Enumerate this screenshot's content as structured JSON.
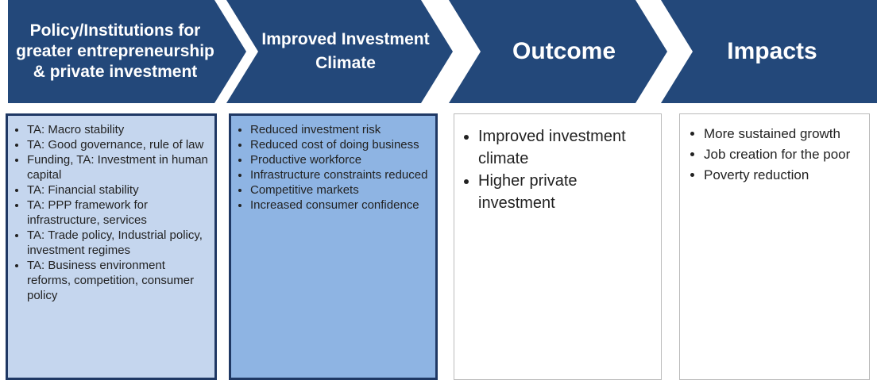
{
  "columns": [
    {
      "heading": "Policy/Institutions for greater entrepreneurship & private investment",
      "items": [
        "TA: Macro stability",
        "TA: Good governance, rule of law",
        "Funding, TA: Investment in human capital",
        "TA: Financial stability",
        "TA: PPP framework for infrastructure, services",
        "TA: Trade policy, Industrial policy, investment regimes",
        "TA: Business environment reforms, competition, consumer  policy"
      ]
    },
    {
      "heading": "Improved Investment Climate",
      "items": [
        "Reduced  investment risk",
        "Reduced cost of doing business",
        "Productive workforce",
        "Infrastructure constraints reduced",
        "Competitive markets",
        "Increased consumer confidence"
      ]
    },
    {
      "heading": "Outcome",
      "items": [
        "Improved investment climate",
        "Higher private investment"
      ]
    },
    {
      "heading": "Impacts",
      "items": [
        "More sustained growth",
        "Job creation for the poor",
        "Poverty reduction"
      ]
    }
  ]
}
